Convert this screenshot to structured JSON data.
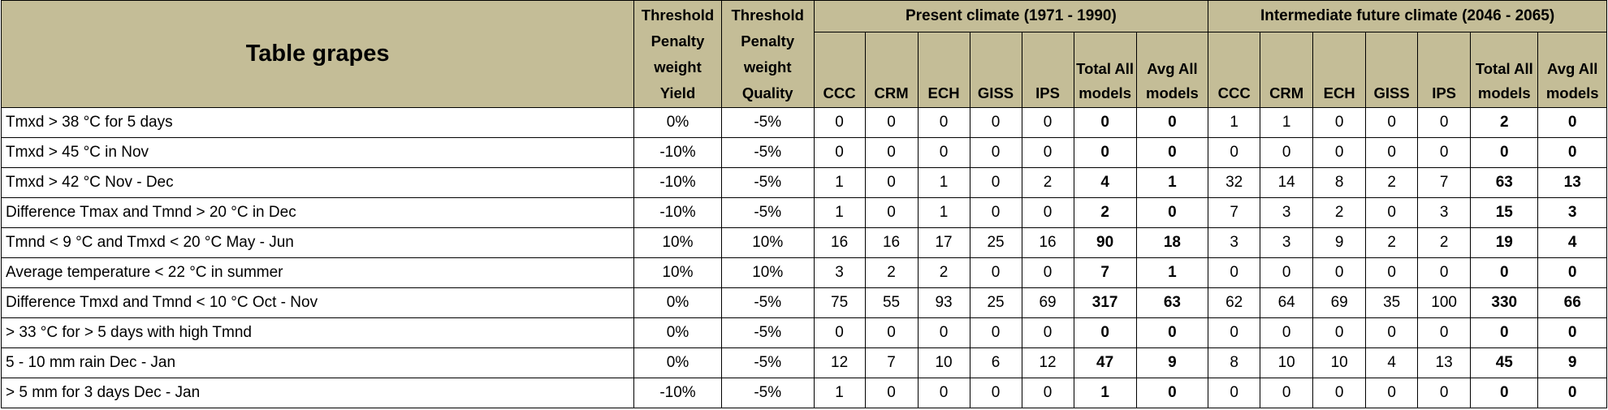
{
  "header": {
    "title": "Table grapes",
    "threshold_yield": "Threshold Penalty weight Yield",
    "threshold_quality": "Threshold Penalty weight Quality",
    "group_present": "Present climate (1971 - 1990)",
    "group_future": "Intermediate future climate (2046 - 2065)",
    "models": [
      "CCC",
      "CRM",
      "ECH",
      "GISS",
      "IPS",
      "Total All models",
      "Avg All models"
    ]
  },
  "rows": [
    {
      "criterion": "Tmxd > 38 °C for 5 days",
      "yield": "0%",
      "quality": "-5%",
      "present": [
        "0",
        "0",
        "0",
        "0",
        "0",
        "0",
        "0"
      ],
      "future": [
        "1",
        "1",
        "0",
        "0",
        "0",
        "2",
        "0"
      ]
    },
    {
      "criterion": "Tmxd > 45 °C in Nov",
      "yield": "-10%",
      "quality": "-5%",
      "present": [
        "0",
        "0",
        "0",
        "0",
        "0",
        "0",
        "0"
      ],
      "future": [
        "0",
        "0",
        "0",
        "0",
        "0",
        "0",
        "0"
      ]
    },
    {
      "criterion": "Tmxd > 42 °C Nov - Dec",
      "yield": "-10%",
      "quality": "-5%",
      "present": [
        "1",
        "0",
        "1",
        "0",
        "2",
        "4",
        "1"
      ],
      "future": [
        "32",
        "14",
        "8",
        "2",
        "7",
        "63",
        "13"
      ]
    },
    {
      "criterion": "Difference Tmax and Tmnd > 20 °C in Dec",
      "yield": "-10%",
      "quality": "-5%",
      "present": [
        "1",
        "0",
        "1",
        "0",
        "0",
        "2",
        "0"
      ],
      "future": [
        "7",
        "3",
        "2",
        "0",
        "3",
        "15",
        "3"
      ]
    },
    {
      "criterion": "Tmnd < 9 °C and Tmxd < 20 °C May - Jun",
      "yield": "10%",
      "quality": "10%",
      "present": [
        "16",
        "16",
        "17",
        "25",
        "16",
        "90",
        "18"
      ],
      "future": [
        "3",
        "3",
        "9",
        "2",
        "2",
        "19",
        "4"
      ]
    },
    {
      "criterion": "Average temperature < 22 °C in summer",
      "yield": "10%",
      "quality": "10%",
      "present": [
        "3",
        "2",
        "2",
        "0",
        "0",
        "7",
        "1"
      ],
      "future": [
        "0",
        "0",
        "0",
        "0",
        "0",
        "0",
        "0"
      ]
    },
    {
      "criterion": "Difference Tmxd and Tmnd < 10 °C Oct - Nov",
      "yield": "0%",
      "quality": "-5%",
      "present": [
        "75",
        "55",
        "93",
        "25",
        "69",
        "317",
        "63"
      ],
      "future": [
        "62",
        "64",
        "69",
        "35",
        "100",
        "330",
        "66"
      ]
    },
    {
      "criterion": "> 33 °C for > 5 days with high Tmnd",
      "yield": "0%",
      "quality": "-5%",
      "present": [
        "0",
        "0",
        "0",
        "0",
        "0",
        "0",
        "0"
      ],
      "future": [
        "0",
        "0",
        "0",
        "0",
        "0",
        "0",
        "0"
      ]
    },
    {
      "criterion": "5 - 10 mm rain Dec - Jan",
      "yield": "0%",
      "quality": "-5%",
      "present": [
        "12",
        "7",
        "10",
        "6",
        "12",
        "47",
        "9"
      ],
      "future": [
        "8",
        "10",
        "10",
        "4",
        "13",
        "45",
        "9"
      ]
    },
    {
      "criterion": "> 5 mm for 3 days Dec - Jan",
      "yield": "-10%",
      "quality": "-5%",
      "present": [
        "1",
        "0",
        "0",
        "0",
        "0",
        "1",
        "0"
      ],
      "future": [
        "0",
        "0",
        "0",
        "0",
        "0",
        "0",
        "0"
      ]
    }
  ]
}
